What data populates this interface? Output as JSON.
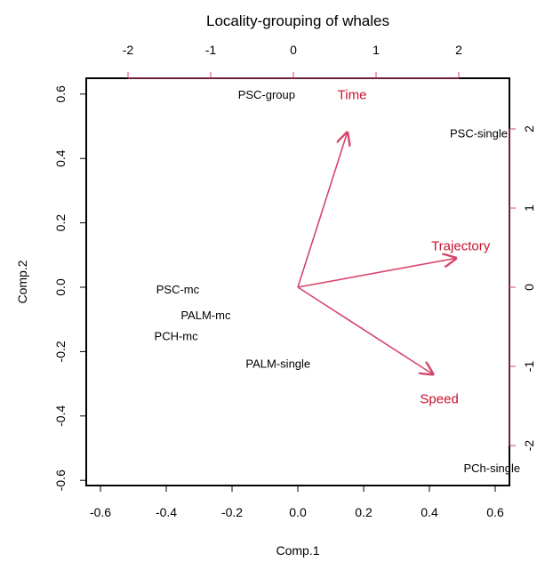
{
  "chart_data": {
    "type": "scatter",
    "title": "Locality-grouping of whales",
    "xlabel": "Comp.1",
    "ylabel": "Comp.2",
    "xlim": [
      -0.65,
      0.65
    ],
    "ylim": [
      -0.65,
      0.65
    ],
    "xticks": [
      "-0.6",
      "-0.4",
      "-0.2",
      "0.0",
      "0.2",
      "0.4",
      "0.6"
    ],
    "yticks": [
      "-0.6",
      "-0.4",
      "-0.2",
      "0.0",
      "0.2",
      "0.4",
      "0.6"
    ],
    "top_ticks": [
      "-2",
      "-1",
      "0",
      "1",
      "2"
    ],
    "right_ticks": [
      "-2",
      "-1",
      "0",
      "1",
      "2"
    ],
    "accent_color": "#d6456b",
    "points": [
      {
        "label": "PSC-group",
        "x": -0.095,
        "y": 0.595
      },
      {
        "label": "PSC-single",
        "x": 0.55,
        "y": 0.475
      },
      {
        "label": "PSC-mc",
        "x": -0.365,
        "y": -0.01
      },
      {
        "label": "PALM-mc",
        "x": -0.28,
        "y": -0.09
      },
      {
        "label": "PCH-mc",
        "x": -0.37,
        "y": -0.155
      },
      {
        "label": "PALM-single",
        "x": -0.06,
        "y": -0.24
      },
      {
        "label": "PCh-single",
        "x": 0.59,
        "y": -0.565
      }
    ],
    "arrows": [
      {
        "label": "Time",
        "x": 0.15,
        "y": 0.48,
        "label_x": 0.165,
        "label_y": 0.595
      },
      {
        "label": "Trajectory",
        "x": 0.48,
        "y": 0.09,
        "label_x": 0.495,
        "label_y": 0.125
      },
      {
        "label": "Speed",
        "x": 0.41,
        "y": -0.27,
        "label_x": 0.43,
        "label_y": -0.35
      }
    ]
  }
}
